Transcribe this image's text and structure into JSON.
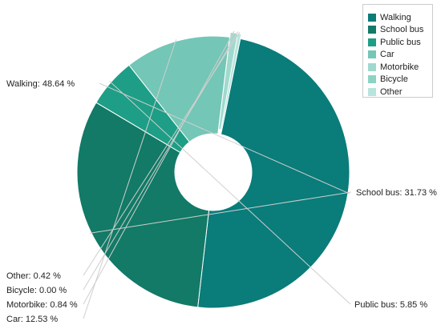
{
  "chart_data": {
    "type": "pie",
    "variant": "donut",
    "slices": [
      {
        "name": "Walking",
        "value": 48.64,
        "label": "Walking: 48.64 %",
        "color": "#0a7c7a"
      },
      {
        "name": "School bus",
        "value": 31.73,
        "label": "School bus: 31.73 %",
        "color": "#127a66"
      },
      {
        "name": "Public bus",
        "value": 5.85,
        "label": "Public bus: 5.85 %",
        "color": "#1e9e86"
      },
      {
        "name": "Car",
        "value": 12.53,
        "label": "Car: 12.53 %",
        "color": "#74c6b6"
      },
      {
        "name": "Motorbike",
        "value": 0.84,
        "label": "Motorbike: 0.84 %",
        "color": "#9fd9ce"
      },
      {
        "name": "Bicycle",
        "value": 0.0,
        "label": "Bicycle: 0.00 %",
        "color": "#8dd3c4"
      },
      {
        "name": "Other",
        "value": 0.42,
        "label": "Other: 0.42 %",
        "color": "#b7e4dc"
      }
    ],
    "legend": {
      "placement": "top-right"
    }
  }
}
